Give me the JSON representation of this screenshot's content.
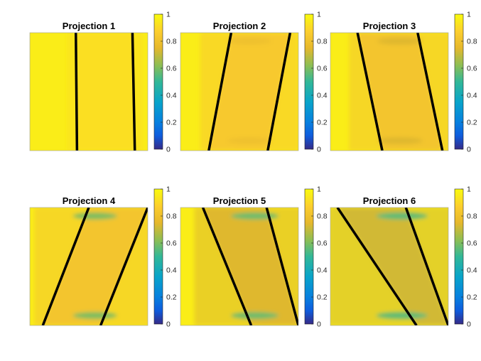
{
  "chart_data": [
    {
      "type": "heatmap",
      "title": "Projection 1",
      "clim": [
        0,
        1
      ],
      "colorbar": {
        "ticks": [
          0,
          0.2,
          0.4,
          0.6,
          0.8,
          1
        ],
        "tick_labels": [
          "0",
          "0.2",
          "0.4",
          "0.6",
          "0.8",
          "1"
        ]
      },
      "colormap": "parula",
      "background_value": 0.96,
      "interior_value": 0.92,
      "edge_band_value": 0.92,
      "lines": [
        {
          "top": 0.39,
          "bottom": 0.4
        },
        {
          "top": 0.87,
          "bottom": 0.89
        }
      ],
      "grid": false
    },
    {
      "type": "heatmap",
      "title": "Projection 2",
      "clim": [
        0,
        1
      ],
      "colorbar": {
        "ticks": [
          0,
          0.2,
          0.4,
          0.6,
          0.8,
          1
        ],
        "tick_labels": [
          "0",
          "0.2",
          "0.4",
          "0.6",
          "0.8",
          "1"
        ]
      },
      "colormap": "parula",
      "background_value": 0.96,
      "interior_value": 0.84,
      "edge_band_value": 0.8,
      "lines": [
        {
          "top": 0.43,
          "bottom": 0.24
        },
        {
          "top": 0.93,
          "bottom": 0.74
        }
      ],
      "grid": false
    },
    {
      "type": "heatmap",
      "title": "Projection 3",
      "clim": [
        0,
        1
      ],
      "colorbar": {
        "ticks": [
          0,
          0.2,
          0.4,
          0.6,
          0.8,
          1
        ],
        "tick_labels": [
          "0",
          "0.2",
          "0.4",
          "0.6",
          "0.8",
          "1"
        ]
      },
      "colormap": "parula",
      "background_value": 0.96,
      "interior_value": 0.82,
      "edge_band_value": 0.74,
      "lines": [
        {
          "top": 0.23,
          "bottom": 0.44
        },
        {
          "top": 0.74,
          "bottom": 0.95
        }
      ],
      "grid": false
    },
    {
      "type": "heatmap",
      "title": "Projection 4",
      "clim": [
        0,
        1
      ],
      "colorbar": {
        "ticks": [
          0,
          0.2,
          0.4,
          0.6,
          0.8,
          1
        ],
        "tick_labels": [
          "0",
          "0.2",
          "0.4",
          "0.6",
          "0.8",
          "1"
        ]
      },
      "colormap": "parula",
      "background_value": 0.96,
      "interior_value": 0.82,
      "edge_band_value": 0.6,
      "lines": [
        {
          "top": 0.5,
          "bottom": 0.11
        },
        {
          "top": 1.0,
          "bottom": 0.6
        }
      ],
      "grid": false
    },
    {
      "type": "heatmap",
      "title": "Projection 5",
      "clim": [
        0,
        1
      ],
      "colorbar": {
        "ticks": [
          0,
          0.2,
          0.4,
          0.6,
          0.8,
          1
        ],
        "tick_labels": [
          "0",
          "0.2",
          "0.4",
          "0.6",
          "0.8",
          "1"
        ]
      },
      "colormap": "parula",
      "background_value": 0.96,
      "interior_value": 0.74,
      "edge_band_value": 0.58,
      "lines": [
        {
          "top": 0.19,
          "bottom": 0.6
        },
        {
          "top": 0.73,
          "bottom": 1.0
        }
      ],
      "grid": false
    },
    {
      "type": "heatmap",
      "title": "Projection 6",
      "clim": [
        0,
        1
      ],
      "colorbar": {
        "ticks": [
          0,
          0.2,
          0.4,
          0.6,
          0.8,
          1
        ],
        "tick_labels": [
          "0",
          "0.2",
          "0.4",
          "0.6",
          "0.8",
          "1"
        ]
      },
      "colormap": "parula",
      "background_value": 0.96,
      "interior_value": 0.72,
      "edge_band_value": 0.56,
      "lines": [
        {
          "top": 0.06,
          "bottom": 0.73
        },
        {
          "top": 0.64,
          "bottom": 1.0
        }
      ],
      "grid": false
    }
  ]
}
